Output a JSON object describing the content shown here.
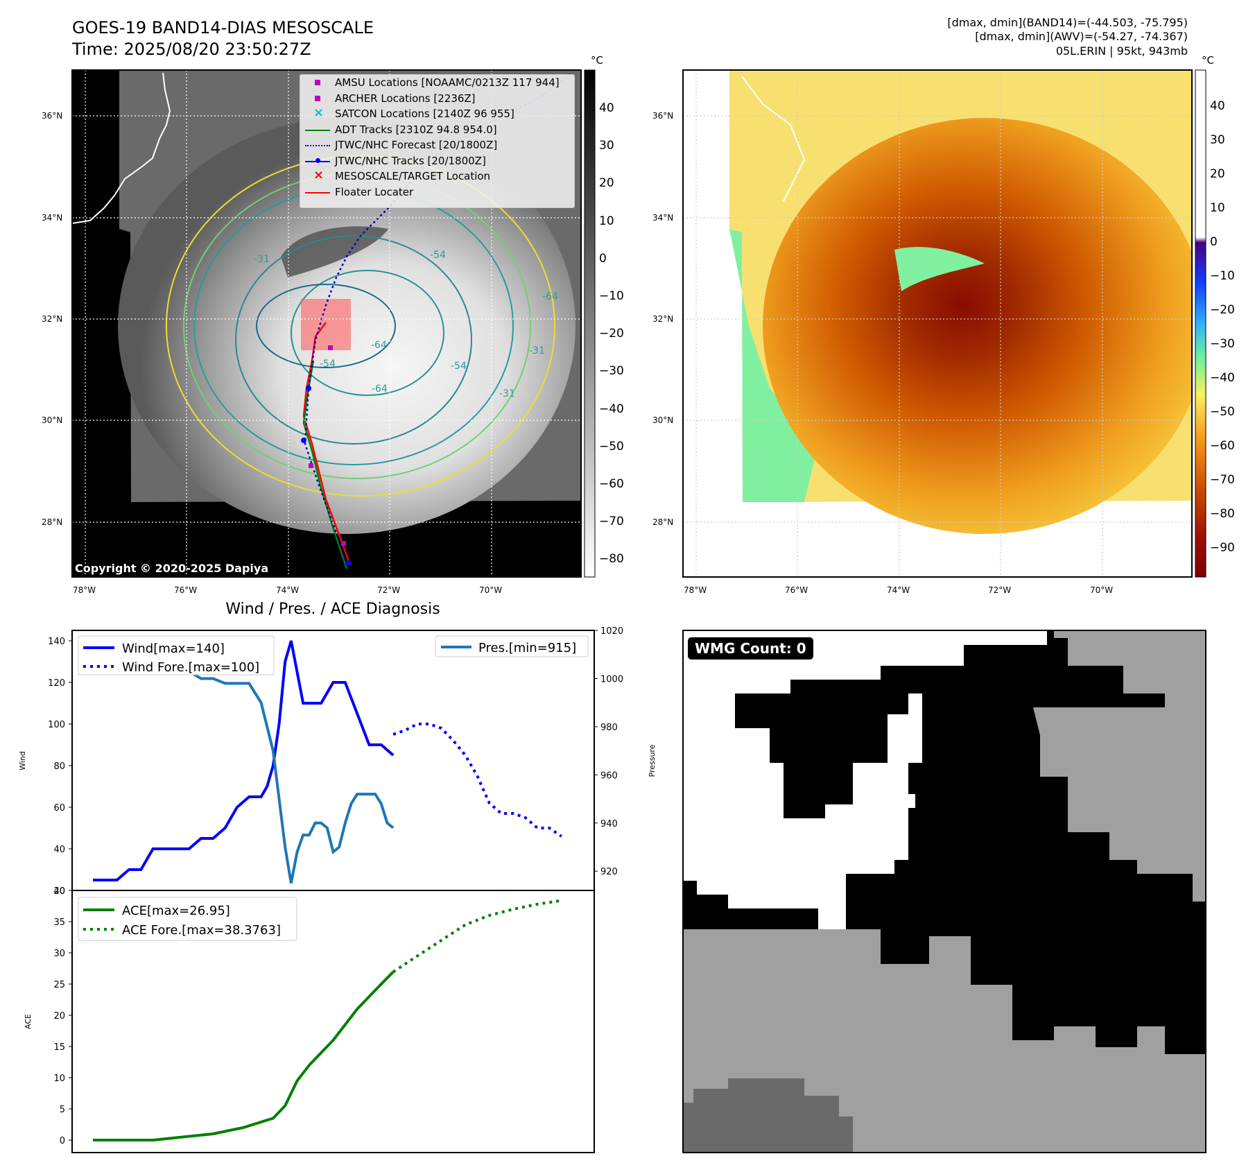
{
  "header": {
    "title_line1": "GOES-19 BAND14-DIAS MESOSCALE",
    "title_line2": "Time: 2025/08/20 23:50:27Z",
    "info_line1": "[dmax, dmin](BAND14)=(-44.503, -75.795)",
    "info_line2": "[dmax, dmin](AWV)=(-54.27, -74.367)",
    "info_line3": "05L.ERIN | 95kt, 943mb"
  },
  "map_axes": {
    "lat_labels": [
      "36°N",
      "34°N",
      "32°N",
      "30°N",
      "28°N"
    ],
    "lon_labels": [
      "78°W",
      "76°W",
      "74°W",
      "72°W",
      "70°W"
    ]
  },
  "ir_panel": {
    "copyright": "Copyright © 2020-2025 Dapiya",
    "colorbar_unit": "°C",
    "colorbar_ticks": [
      "40",
      "30",
      "20",
      "10",
      "0",
      "−10",
      "−20",
      "−30",
      "−40",
      "−50",
      "−60",
      "−70",
      "−80"
    ],
    "contour_labels": [
      "-31",
      "-54",
      "-64",
      "-54",
      "-31",
      "-64",
      "-31",
      "-64",
      "-54"
    ],
    "legend": [
      {
        "label": "AMSU Locations [NOAAMC/0213Z 117 944]",
        "color": "#c000c0",
        "marker": "square"
      },
      {
        "label": "ARCHER Locations [2236Z]",
        "color": "#c000c0",
        "marker": "square"
      },
      {
        "label": "SATCON Locations [2140Z 96 955]",
        "color": "#00c0c0",
        "marker": "x"
      },
      {
        "label": "ADT Tracks [2310Z 94.8 954.0]",
        "color": "#008000",
        "marker": "line"
      },
      {
        "label": "JTWC/NHC Forecast [20/1800Z]",
        "color": "#0000c0",
        "marker": "dotted"
      },
      {
        "label": "JTWC/NHC Tracks [20/1800Z]",
        "color": "#0000ff",
        "marker": "line-dot"
      },
      {
        "label": "MESOSCALE/TARGET Location",
        "color": "#ff0000",
        "marker": "x"
      },
      {
        "label": "Floater Locater",
        "color": "#ff0000",
        "marker": "line"
      }
    ]
  },
  "awv_panel": {
    "colorbar_unit": "°C",
    "colorbar_ticks": [
      "40",
      "30",
      "20",
      "10",
      "0",
      "−10",
      "−20",
      "−30",
      "−40",
      "−50",
      "−60",
      "−70",
      "−80",
      "−90"
    ]
  },
  "wmg_panel": {
    "badge": "WMG Count: 0"
  },
  "chart_data": [
    {
      "type": "line",
      "title": "Wind / Pres. / ACE Diagnosis",
      "ylabel": "Wind",
      "y2label": "Pressure",
      "ylim": [
        20,
        145
      ],
      "y2lim": [
        912,
        1020
      ],
      "yticks": [
        "140",
        "120",
        "100",
        "80",
        "60",
        "40",
        "20"
      ],
      "y2ticks": [
        "1020",
        "1000",
        "980",
        "960",
        "940",
        "920"
      ],
      "series": [
        {
          "name": "Wind[max=140]",
          "color": "#0000ff",
          "style": "solid",
          "x": [
            0,
            2,
            4,
            6,
            8,
            10,
            12,
            14,
            16,
            18,
            20,
            22,
            24,
            26,
            28,
            29,
            30,
            31,
            32,
            33,
            34,
            35,
            36,
            37,
            38,
            40,
            42,
            44,
            46,
            48,
            50
          ],
          "values": [
            25,
            25,
            25,
            30,
            30,
            40,
            40,
            40,
            40,
            45,
            45,
            50,
            60,
            65,
            65,
            70,
            80,
            100,
            130,
            140,
            125,
            110,
            110,
            110,
            110,
            120,
            120,
            105,
            90,
            90,
            85
          ]
        },
        {
          "name": "Wind Fore.[max=100]",
          "color": "#0000ff",
          "style": "dotted",
          "x": [
            50,
            52,
            54,
            56,
            58,
            60,
            62,
            64,
            66,
            68,
            70,
            72,
            74,
            76,
            78
          ],
          "values": [
            95,
            97,
            100,
            100,
            98,
            92,
            85,
            75,
            62,
            57,
            57,
            55,
            50,
            50,
            46
          ]
        },
        {
          "name": "Pres.[min=915]",
          "color": "#1f77b4",
          "style": "solid",
          "axis": "y2",
          "x": [
            0,
            1,
            2,
            4,
            8,
            12,
            16,
            18,
            20,
            22,
            24,
            26,
            28,
            29,
            30,
            31,
            32,
            33,
            34,
            35,
            36,
            37,
            38,
            39,
            40,
            41,
            42,
            43,
            44,
            45,
            46,
            47,
            48,
            49,
            50
          ],
          "values": [
            1015,
            1015,
            1008,
            1005,
            1005,
            1003,
            1003,
            1000,
            1000,
            998,
            998,
            998,
            990,
            980,
            970,
            950,
            930,
            915,
            928,
            935,
            935,
            940,
            940,
            938,
            928,
            930,
            940,
            948,
            952,
            952,
            952,
            952,
            948,
            940,
            938
          ]
        }
      ]
    },
    {
      "type": "line",
      "ylabel": "ACE",
      "ylim": [
        -2,
        40
      ],
      "yticks": [
        "40",
        "35",
        "30",
        "25",
        "20",
        "15",
        "10",
        "5",
        "0"
      ],
      "series": [
        {
          "name": "ACE[max=26.95]",
          "color": "#008000",
          "style": "solid",
          "x": [
            0,
            5,
            10,
            15,
            20,
            25,
            30,
            32,
            34,
            36,
            38,
            40,
            42,
            44,
            46,
            48,
            50
          ],
          "values": [
            0,
            0,
            0,
            0.5,
            1,
            2,
            3.5,
            5.5,
            9.5,
            12,
            14,
            16,
            18.5,
            21,
            23,
            25,
            26.95
          ]
        },
        {
          "name": "ACE Fore.[max=38.3763]",
          "color": "#008000",
          "style": "dotted",
          "x": [
            50,
            54,
            58,
            62,
            66,
            70,
            74,
            78
          ],
          "values": [
            26.95,
            29.5,
            32,
            34.5,
            36,
            37,
            37.8,
            38.3763
          ]
        }
      ]
    }
  ]
}
